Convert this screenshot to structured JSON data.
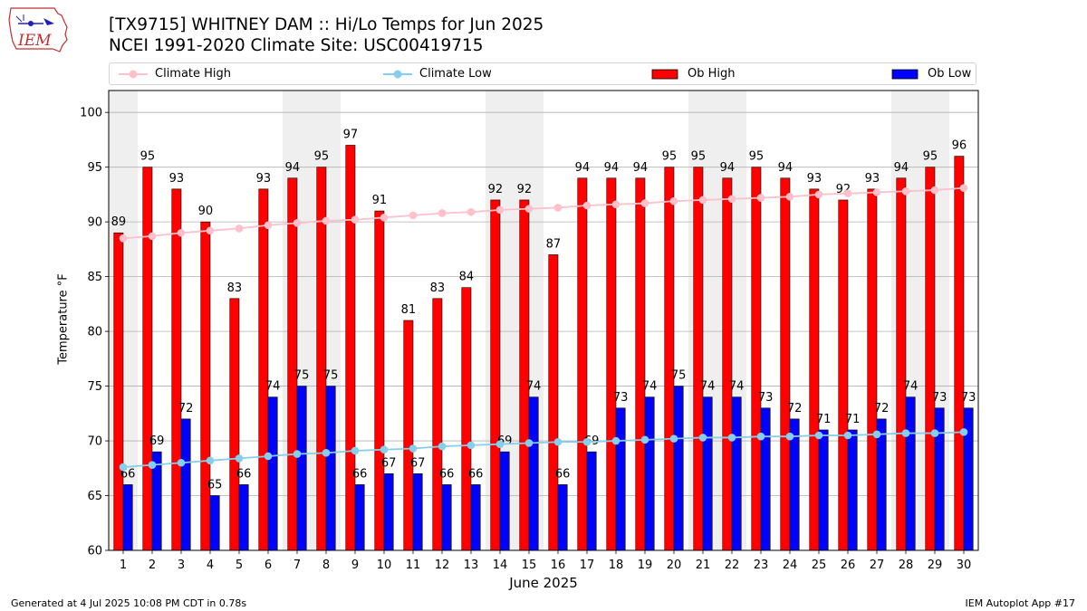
{
  "header": {
    "title_line1": "[TX9715] WHITNEY DAM :: Hi/Lo Temps for Jun 2025",
    "title_line2": "NCEI 1991-2020 Climate Site: USC00419715",
    "logo_text": "IEM"
  },
  "footer": {
    "left": "Generated at 4 Jul 2025 10:08 PM CDT in 0.78s",
    "right": "IEM Autoplot App #17"
  },
  "colors": {
    "ob_high": "#ff0000",
    "ob_low": "#0000ff",
    "climate_high": "#ffc0cb",
    "climate_low": "#87ceeb",
    "weekend_shade": "#efefef",
    "grid": "#b0b0b0"
  },
  "chart_data": {
    "type": "bar",
    "xlabel": "June 2025",
    "ylabel": "Temperature °F",
    "ylim": [
      60,
      102
    ],
    "yticks": [
      60,
      65,
      70,
      75,
      80,
      85,
      90,
      95,
      100
    ],
    "grid": "horizontal",
    "legend_position": "top",
    "days": [
      1,
      2,
      3,
      4,
      5,
      6,
      7,
      8,
      9,
      10,
      11,
      12,
      13,
      14,
      15,
      16,
      17,
      18,
      19,
      20,
      21,
      22,
      23,
      24,
      25,
      26,
      27,
      28,
      29,
      30
    ],
    "shaded_days": [
      1,
      7,
      8,
      14,
      15,
      21,
      22,
      28,
      29
    ],
    "series": [
      {
        "name": "Ob High",
        "kind": "bar",
        "values": [
          89,
          95,
          93,
          90,
          83,
          93,
          94,
          95,
          97,
          91,
          81,
          83,
          84,
          92,
          92,
          87,
          94,
          94,
          94,
          95,
          95,
          94,
          95,
          94,
          93,
          92,
          93,
          94,
          95,
          96
        ]
      },
      {
        "name": "Ob Low",
        "kind": "bar",
        "values": [
          66,
          69,
          72,
          65,
          66,
          74,
          75,
          75,
          66,
          67,
          67,
          66,
          66,
          69,
          74,
          66,
          69,
          73,
          74,
          75,
          74,
          74,
          73,
          72,
          71,
          71,
          72,
          74,
          73,
          73
        ]
      },
      {
        "name": "Climate High",
        "kind": "line",
        "values": [
          88.5,
          88.7,
          89.0,
          89.2,
          89.4,
          89.7,
          89.9,
          90.1,
          90.2,
          90.4,
          90.6,
          90.8,
          90.9,
          91.1,
          91.2,
          91.3,
          91.5,
          91.6,
          91.7,
          91.9,
          92.0,
          92.1,
          92.2,
          92.3,
          92.5,
          92.6,
          92.7,
          92.8,
          92.9,
          93.1
        ]
      },
      {
        "name": "Climate Low",
        "kind": "line",
        "values": [
          67.6,
          67.8,
          68.0,
          68.2,
          68.4,
          68.6,
          68.8,
          68.9,
          69.1,
          69.2,
          69.3,
          69.5,
          69.6,
          69.7,
          69.8,
          69.9,
          69.9,
          70.0,
          70.1,
          70.2,
          70.3,
          70.3,
          70.4,
          70.4,
          70.5,
          70.5,
          70.6,
          70.7,
          70.7,
          70.8
        ]
      }
    ]
  }
}
